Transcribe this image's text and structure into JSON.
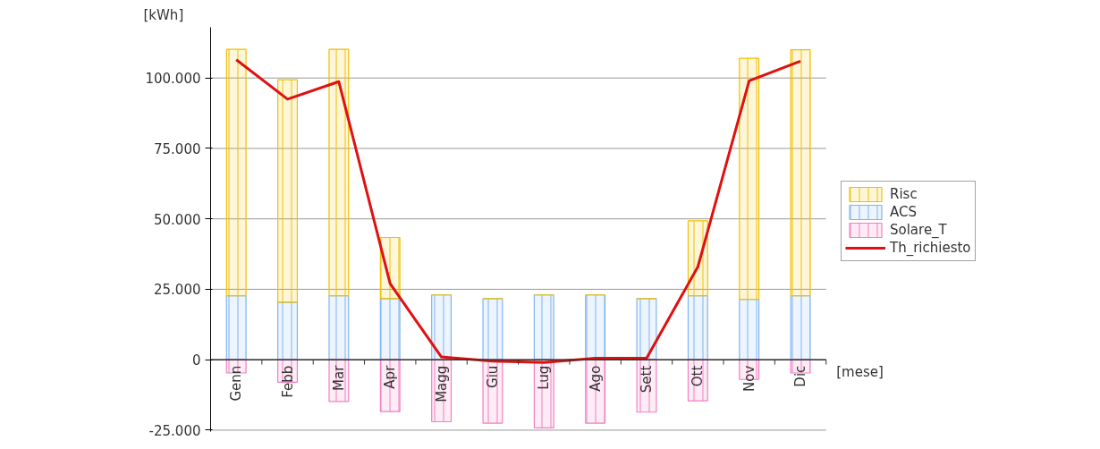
{
  "chart_data": {
    "type": "bar",
    "stacked": true,
    "ylabel": "[kWh]",
    "xlabel": "[mese]",
    "categories": [
      "Genn",
      "Febb",
      "Mar",
      "Apr",
      "Magg",
      "Giu",
      "Lug",
      "Ago",
      "Sett",
      "Ott",
      "Nov",
      "Dic"
    ],
    "series": [
      {
        "name": "ACS",
        "color": "#80b4f0",
        "values": [
          22700,
          20400,
          22700,
          21700,
          23000,
          21700,
          23000,
          23000,
          21700,
          22700,
          21400,
          22700
        ]
      },
      {
        "name": "Risc",
        "color": "#f0c000",
        "values": [
          87500,
          79000,
          87500,
          21700,
          0,
          0,
          0,
          0,
          0,
          26600,
          85600,
          87300
        ]
      },
      {
        "name": "Solare_T",
        "color": "#f080c0",
        "values": [
          -4700,
          -8000,
          -14800,
          -18400,
          -22000,
          -22500,
          -24200,
          -22500,
          -18600,
          -14600,
          -7000,
          -4700
        ]
      },
      {
        "name": "Th_richiesto",
        "type": "line",
        "color": "#e01010",
        "values": [
          106500,
          92500,
          98700,
          27000,
          1000,
          -500,
          -1000,
          500,
          500,
          33000,
          99000,
          106000
        ]
      }
    ],
    "ylim": [
      -25500,
      118000
    ],
    "yticks": [
      {
        "value": -25000,
        "label": "-25.000"
      },
      0,
      {
        "value": 25000,
        "label": "25.000"
      },
      {
        "value": 50000,
        "label": "50.000"
      },
      {
        "value": 75000,
        "label": "75.000"
      },
      {
        "value": 100000,
        "label": "100.000"
      }
    ],
    "grid": "y",
    "legend": "right"
  }
}
